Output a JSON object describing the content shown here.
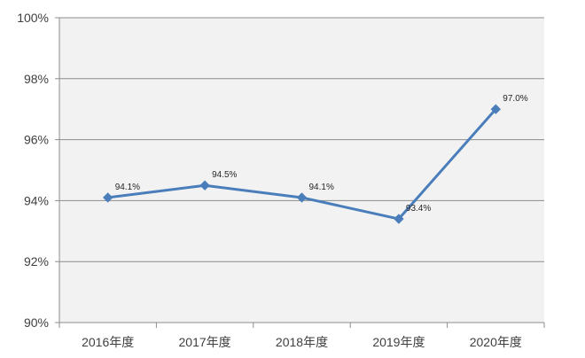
{
  "chart_data": {
    "type": "line",
    "categories": [
      "2016年度",
      "2017年度",
      "2018年度",
      "2019年度",
      "2020年度"
    ],
    "series": [
      {
        "values": [
          94.1,
          94.5,
          94.1,
          93.4,
          97.0
        ],
        "data_labels": [
          "94.1%",
          "94.5%",
          "94.1%",
          "93.4%",
          "97.0%"
        ],
        "color": "#4a7ebb",
        "marker": "diamond"
      }
    ],
    "title": "",
    "xlabel": "",
    "ylabel": "",
    "ylim": [
      90,
      100
    ],
    "yticks": [
      90,
      92,
      94,
      96,
      98,
      100
    ],
    "ytick_labels": [
      "90%",
      "92%",
      "94%",
      "96%",
      "98%",
      "100%"
    ],
    "grid": true,
    "plot_background": "#f2f2f2",
    "grid_color": "#8c8c8c"
  }
}
